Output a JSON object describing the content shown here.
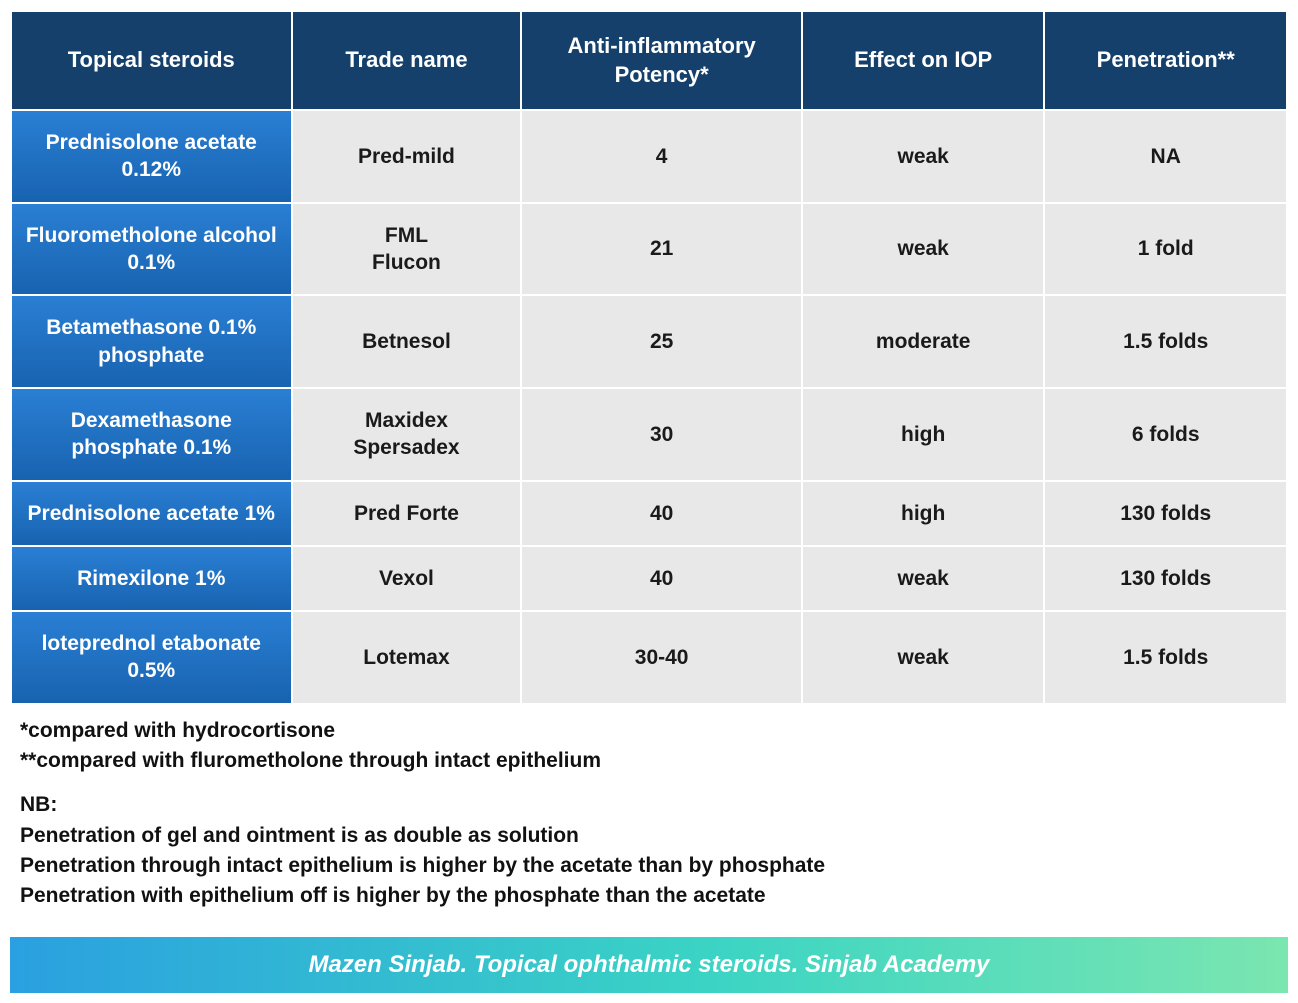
{
  "table": {
    "columns": [
      "Topical steroids",
      "Trade name",
      "Anti-inflammatory Potency*",
      "Effect on IOP",
      "Penetration**"
    ],
    "column_widths_pct": [
      22,
      18,
      22,
      19,
      19
    ],
    "header_bg": "#14406b",
    "header_text_color": "#ffffff",
    "rowhead_gradient_top": "#2a7fd4",
    "rowhead_gradient_bottom": "#1863b0",
    "rowhead_text_color": "#ffffff",
    "data_bg": "#e8e8e8",
    "data_text_color": "#1a1a1a",
    "header_fontsize": 22,
    "cell_fontsize": 21,
    "rows": [
      {
        "steroid": "Prednisolone acetate 0.12%",
        "trade": "Pred-mild",
        "potency": "4",
        "iop": "weak",
        "penetration": "NA"
      },
      {
        "steroid": "Fluorometholone alcohol 0.1%",
        "trade": "FML\nFlucon",
        "potency": "21",
        "iop": "weak",
        "penetration": "1 fold"
      },
      {
        "steroid": "Betamethasone 0.1% phosphate",
        "trade": "Betnesol",
        "potency": "25",
        "iop": "moderate",
        "penetration": "1.5 folds"
      },
      {
        "steroid": "Dexamethasone phosphate 0.1%",
        "trade": "Maxidex\nSpersadex",
        "potency": "30",
        "iop": "high",
        "penetration": "6 folds"
      },
      {
        "steroid": "Prednisolone acetate 1%",
        "trade": "Pred Forte",
        "potency": "40",
        "iop": "high",
        "penetration": "130 folds"
      },
      {
        "steroid": "Rimexilone 1%",
        "trade": "Vexol",
        "potency": "40",
        "iop": "weak",
        "penetration": "130 folds"
      },
      {
        "steroid": "loteprednol etabonate 0.5%",
        "trade": "Lotemax",
        "potency": "30-40",
        "iop": "weak",
        "penetration": "1.5 folds"
      }
    ]
  },
  "notes": {
    "footnote1": "*compared with hydrocortisone",
    "footnote2": "**compared with flurometholone through intact epithelium",
    "nb_label": "NB:",
    "nb_line1": "Penetration of gel and ointment is as double as solution",
    "nb_line2": "Penetration through intact epithelium is higher by the acetate than by phosphate",
    "nb_line3": "Penetration with epithelium off is higher by the phosphate than the acetate",
    "fontsize": 21,
    "text_color": "#111111"
  },
  "footer": {
    "text": "Mazen Sinjab. Topical ophthalmic steroids. Sinjab Academy",
    "gradient_start": "#2aa0e0",
    "gradient_mid": "#3bd4c4",
    "gradient_end": "#7be6b0",
    "text_color": "#ffffff",
    "fontsize": 24
  }
}
